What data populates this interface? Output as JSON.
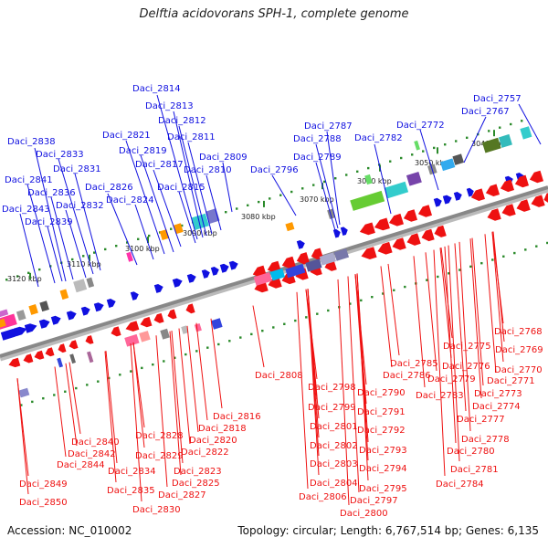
{
  "title": "Delftia acidovorans SPH-1, complete genome",
  "footer": {
    "accession": "Accession: NC_010002",
    "summary": "Topology: circular; Length: 6,767,514 bp; Genes: 6,135"
  },
  "colors": {
    "forward": "#1010e0",
    "reverse": "#ee1111",
    "axis": "#888888",
    "tick": "#2a8a2a"
  },
  "kbp_ticks": [
    {
      "label": "3040 kbp"
    },
    {
      "label": "3050 kbp"
    },
    {
      "label": "3060 kbp"
    },
    {
      "label": "3070 kbp"
    },
    {
      "label": "3080 kbp"
    },
    {
      "label": "3090 kbp"
    },
    {
      "label": "3100 kbp"
    },
    {
      "label": "3110 kbp"
    },
    {
      "label": "3120 kbp"
    }
  ],
  "top_labels": [
    {
      "text": "Daci_2757"
    },
    {
      "text": "Daci_2767"
    },
    {
      "text": "Daci_2772"
    },
    {
      "text": "Daci_2782"
    },
    {
      "text": "Daci_2787"
    },
    {
      "text": "Daci_2788"
    },
    {
      "text": "Daci_2789"
    },
    {
      "text": "Daci_2796"
    },
    {
      "text": "Daci_2809"
    },
    {
      "text": "Daci_2810"
    },
    {
      "text": "Daci_2811"
    },
    {
      "text": "Daci_2812"
    },
    {
      "text": "Daci_2813"
    },
    {
      "text": "Daci_2814"
    },
    {
      "text": "Daci_2815"
    },
    {
      "text": "Daci_2817"
    },
    {
      "text": "Daci_2819"
    },
    {
      "text": "Daci_2821"
    },
    {
      "text": "Daci_2824"
    },
    {
      "text": "Daci_2826"
    },
    {
      "text": "Daci_2831"
    },
    {
      "text": "Daci_2832"
    },
    {
      "text": "Daci_2833"
    },
    {
      "text": "Daci_2836"
    },
    {
      "text": "Daci_2838"
    },
    {
      "text": "Daci_2839"
    },
    {
      "text": "Daci_2841"
    },
    {
      "text": "Daci_2843"
    }
  ],
  "bottom_labels": [
    {
      "text": "Daci_2768"
    },
    {
      "text": "Daci_2769"
    },
    {
      "text": "Daci_2770"
    },
    {
      "text": "Daci_2771"
    },
    {
      "text": "Daci_2773"
    },
    {
      "text": "Daci_2774"
    },
    {
      "text": "Daci_2775"
    },
    {
      "text": "Daci_2776"
    },
    {
      "text": "Daci_2777"
    },
    {
      "text": "Daci_2778"
    },
    {
      "text": "Daci_2779"
    },
    {
      "text": "Daci_2780"
    },
    {
      "text": "Daci_2781"
    },
    {
      "text": "Daci_2783"
    },
    {
      "text": "Daci_2784"
    },
    {
      "text": "Daci_2785"
    },
    {
      "text": "Daci_2786"
    },
    {
      "text": "Daci_2790"
    },
    {
      "text": "Daci_2791"
    },
    {
      "text": "Daci_2792"
    },
    {
      "text": "Daci_2793"
    },
    {
      "text": "Daci_2794"
    },
    {
      "text": "Daci_2795"
    },
    {
      "text": "Daci_2797"
    },
    {
      "text": "Daci_2798"
    },
    {
      "text": "Daci_2799"
    },
    {
      "text": "Daci_2800"
    },
    {
      "text": "Daci_2801"
    },
    {
      "text": "Daci_2802"
    },
    {
      "text": "Daci_2803"
    },
    {
      "text": "Daci_2804"
    },
    {
      "text": "Daci_2806"
    },
    {
      "text": "Daci_2808"
    },
    {
      "text": "Daci_2816"
    },
    {
      "text": "Daci_2818"
    },
    {
      "text": "Daci_2820"
    },
    {
      "text": "Daci_2822"
    },
    {
      "text": "Daci_2823"
    },
    {
      "text": "Daci_2825"
    },
    {
      "text": "Daci_2827"
    },
    {
      "text": "Daci_2828"
    },
    {
      "text": "Daci_2829"
    },
    {
      "text": "Daci_2830"
    },
    {
      "text": "Daci_2834"
    },
    {
      "text": "Daci_2835"
    },
    {
      "text": "Daci_2840"
    },
    {
      "text": "Daci_2842"
    },
    {
      "text": "Daci_2844"
    },
    {
      "text": "Daci_2849"
    },
    {
      "text": "Daci_2850"
    }
  ]
}
